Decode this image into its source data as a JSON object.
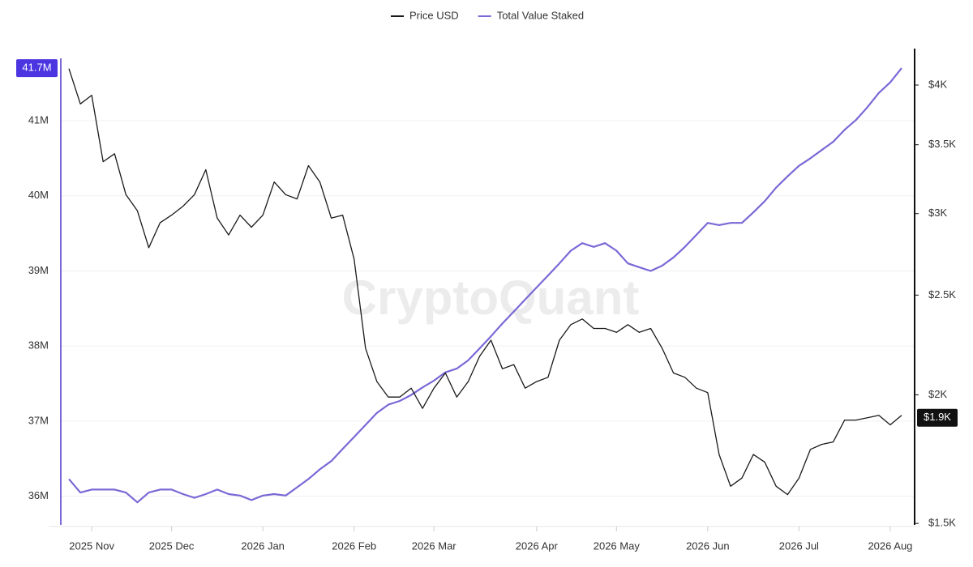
{
  "chart_data": {
    "type": "line",
    "watermark": "CryptoQuant",
    "categories": [
      null,
      null,
      "2025 Nov",
      null,
      null,
      null,
      null,
      null,
      null,
      "2025 Dec",
      null,
      null,
      null,
      null,
      null,
      null,
      null,
      "2026 Jan",
      null,
      null,
      null,
      null,
      null,
      null,
      null,
      "2026 Feb",
      null,
      null,
      null,
      null,
      null,
      null,
      "2026 Mar",
      null,
      null,
      null,
      null,
      null,
      null,
      null,
      null,
      "2026 Apr",
      null,
      null,
      null,
      null,
      null,
      null,
      "2026 May",
      null,
      null,
      null,
      null,
      null,
      null,
      null,
      "2026 Jun",
      null,
      null,
      null,
      null,
      null,
      null,
      null,
      "2026 Jul",
      null,
      null,
      null,
      null,
      null,
      null,
      null,
      "2026 Aug",
      null
    ],
    "series": [
      {
        "name": "Price USD",
        "color": "#1a1a1a",
        "axis": "y2",
        "values": [
          4150,
          3835,
          3910,
          3370,
          3430,
          3130,
          3020,
          2780,
          2940,
          2990,
          3050,
          3130,
          3310,
          2970,
          2860,
          2990,
          2910,
          2990,
          3220,
          3130,
          3100,
          3340,
          3220,
          2970,
          2990,
          2710,
          2220,
          2060,
          1990,
          1990,
          2030,
          1940,
          2030,
          2100,
          1990,
          2060,
          2180,
          2260,
          2120,
          2140,
          2030,
          2060,
          2080,
          2260,
          2340,
          2370,
          2320,
          2320,
          2300,
          2340,
          2300,
          2320,
          2220,
          2100,
          2080,
          2030,
          2010,
          1750,
          1630,
          1660,
          1750,
          1720,
          1630,
          1600,
          1660,
          1770,
          1790,
          1800,
          1890,
          1890,
          1900,
          1910,
          1870,
          1910
        ]
      },
      {
        "name": "Total Value Staked",
        "color": "#7b68d6",
        "axis": "y",
        "values": [
          36.23,
          36.05,
          36.09,
          36.09,
          36.09,
          36.05,
          35.92,
          36.05,
          36.09,
          36.09,
          36.03,
          35.98,
          36.03,
          36.09,
          36.03,
          36.01,
          35.95,
          36.01,
          36.03,
          36.01,
          36.12,
          36.23,
          36.36,
          36.47,
          36.63,
          36.79,
          36.95,
          37.11,
          37.22,
          37.27,
          37.35,
          37.45,
          37.54,
          37.65,
          37.7,
          37.81,
          37.97,
          38.13,
          38.3,
          38.46,
          38.62,
          38.78,
          38.94,
          39.1,
          39.27,
          39.37,
          39.32,
          39.37,
          39.27,
          39.1,
          39.05,
          39.0,
          39.07,
          39.18,
          39.32,
          39.48,
          39.64,
          39.61,
          39.64,
          39.64,
          39.78,
          39.93,
          40.11,
          40.26,
          40.4,
          40.5,
          40.61,
          40.72,
          40.88,
          41.01,
          41.18,
          41.37,
          41.51,
          41.7
        ]
      }
    ],
    "ylim": [
      35.62,
      41.96
    ],
    "yticks": [
      {
        "value": 36,
        "label": "36M"
      },
      {
        "value": 37,
        "label": "37M"
      },
      {
        "value": 38,
        "label": "38M"
      },
      {
        "value": 39,
        "label": "39M"
      },
      {
        "value": 40,
        "label": "40M"
      },
      {
        "value": 41,
        "label": "41M"
      }
    ],
    "y2lim": [
      1495,
      4340
    ],
    "y2log": true,
    "y2ticks": [
      {
        "value": 1500,
        "label": "$1.5K"
      },
      {
        "value": 2000,
        "label": "$2K"
      },
      {
        "value": 2500,
        "label": "$2.5K"
      },
      {
        "value": 3000,
        "label": "$3K"
      },
      {
        "value": 3500,
        "label": "$3.5K"
      },
      {
        "value": 4000,
        "label": "$4K"
      }
    ],
    "grid": true,
    "legend": "top",
    "annotations": [
      {
        "value": 41.7,
        "label": "41.7M",
        "axis": "y",
        "color": "#4a35e0"
      },
      {
        "value": 1900,
        "label": "$1.9K",
        "axis": "y2",
        "color": "#111111"
      }
    ]
  }
}
